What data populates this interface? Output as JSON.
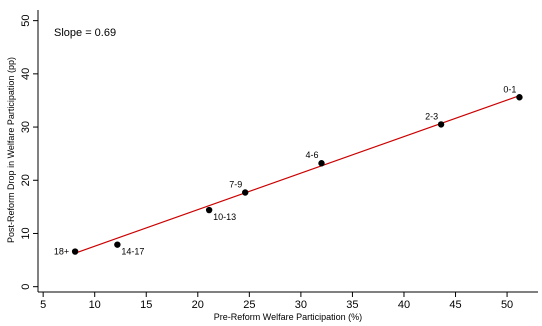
{
  "chart_data": {
    "type": "scatter",
    "annotation": "Slope = 0.69",
    "xlabel": "Pre-Reform Welfare Participation (%)",
    "ylabel": "Post-Reform Drop in Welfare Participation (pp)",
    "xlim": [
      4.5,
      53
    ],
    "ylim": [
      -1,
      52
    ],
    "xticks": [
      5,
      10,
      15,
      20,
      25,
      30,
      35,
      40,
      45,
      50
    ],
    "yticks": [
      0,
      10,
      20,
      30,
      40,
      50
    ],
    "grid": false,
    "points": [
      {
        "label": "0-1",
        "x": 51.2,
        "y": 35.6
      },
      {
        "label": "2-3",
        "x": 43.6,
        "y": 30.5
      },
      {
        "label": "4-6",
        "x": 32.0,
        "y": 23.2
      },
      {
        "label": "7-9",
        "x": 24.6,
        "y": 17.7
      },
      {
        "label": "10-13",
        "x": 21.1,
        "y": 14.4
      },
      {
        "label": "14-17",
        "x": 12.2,
        "y": 7.9
      },
      {
        "label": "18+",
        "x": 8.1,
        "y": 6.6
      }
    ],
    "fit_line": {
      "x": [
        8.1,
        51.2
      ],
      "y": [
        6.3,
        35.9
      ]
    },
    "colors": {
      "points": "#000000",
      "fit_line": "#cc0000",
      "axes": "#000000"
    }
  }
}
